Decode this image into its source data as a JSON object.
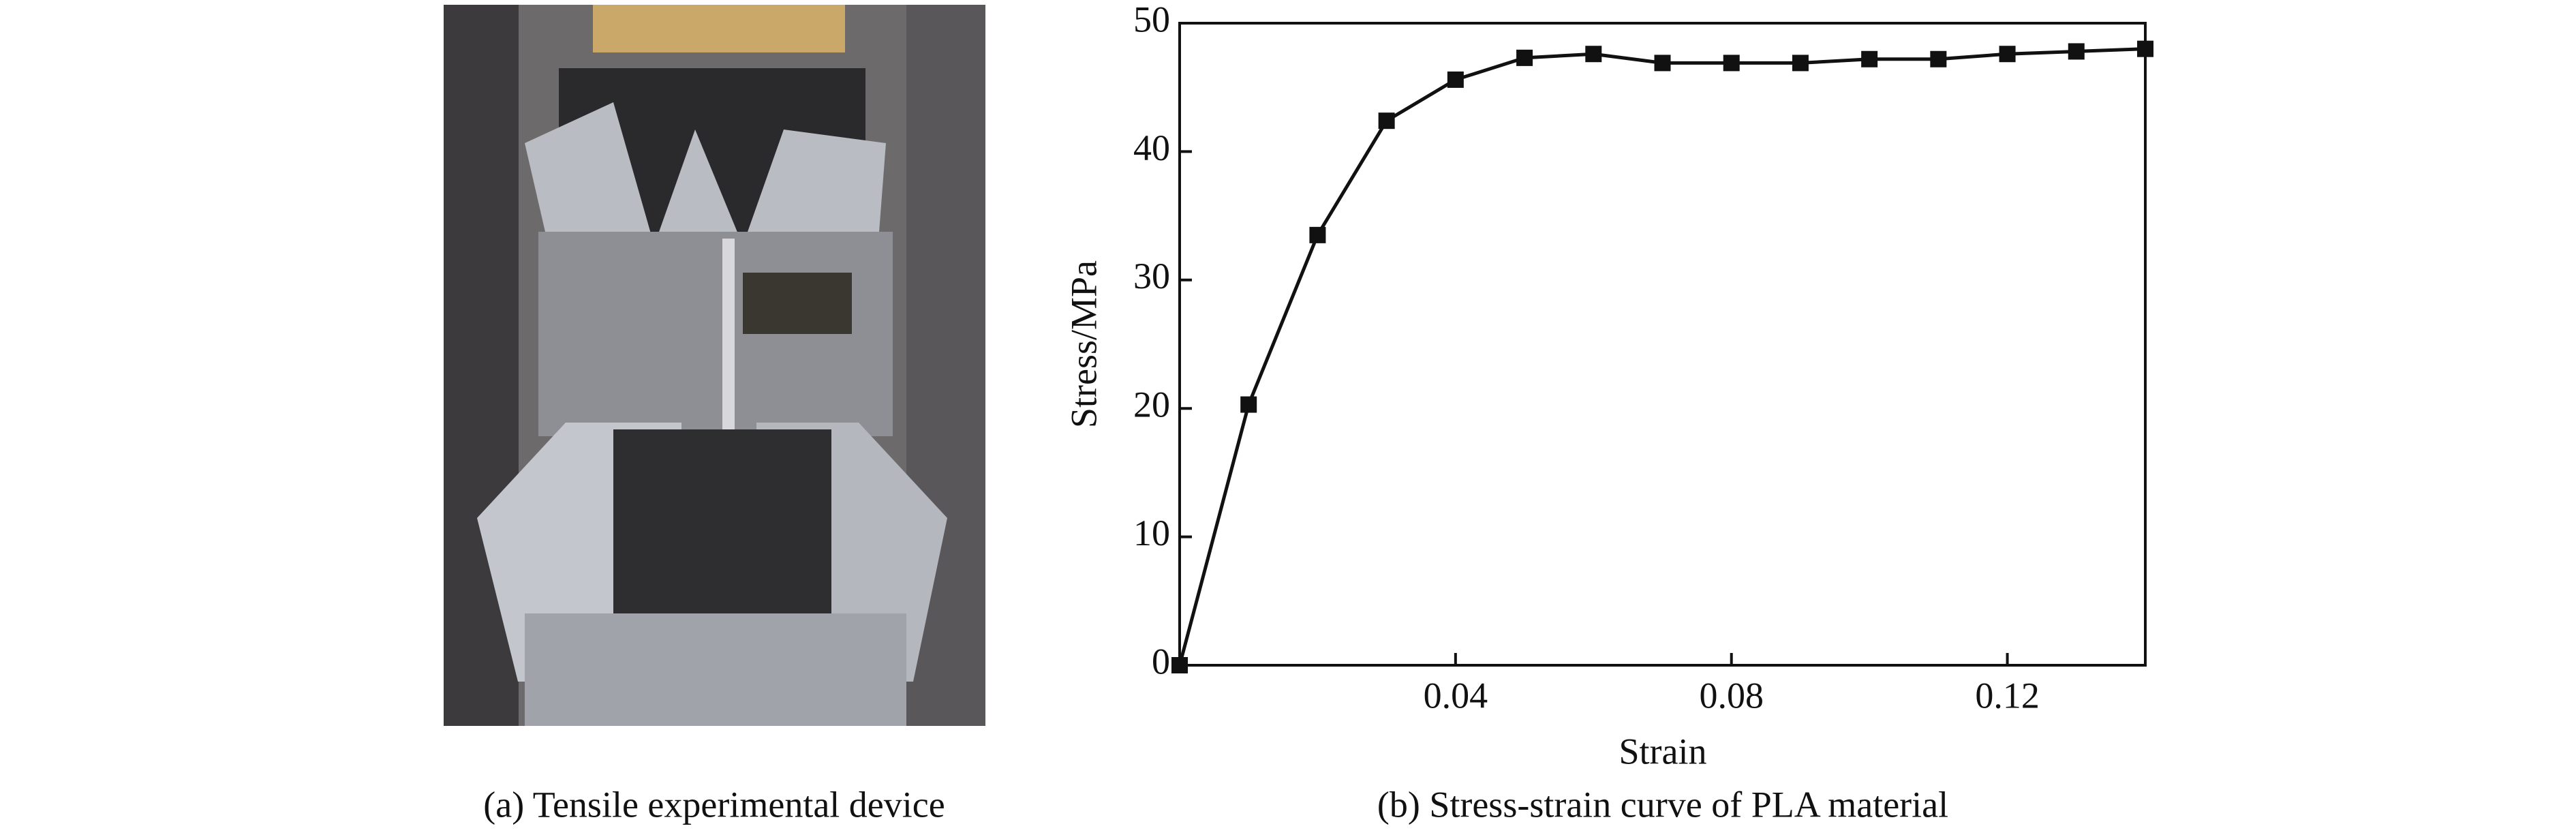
{
  "chart_data": {
    "type": "line",
    "x_label": "Strain",
    "y_label": "Stress/MPa",
    "caption": "(b) Stress-strain curve of PLA material",
    "x": [
      0,
      0.01,
      0.02,
      0.03,
      0.04,
      0.05,
      0.06,
      0.07,
      0.08,
      0.09,
      0.1,
      0.11,
      0.12,
      0.13,
      0.14
    ],
    "values": [
      0,
      20.3,
      33.5,
      42.4,
      45.6,
      47.3,
      47.6,
      46.9,
      46.9,
      46.9,
      47.2,
      47.2,
      47.6,
      47.8,
      48.0
    ],
    "color": "#111111",
    "xlim": [
      0,
      0.14
    ],
    "xticks": [
      0.04,
      0.08,
      0.12
    ],
    "ylim": [
      0,
      50
    ],
    "yticks": [
      0,
      10,
      20,
      30,
      40,
      50
    ]
  },
  "photo": {
    "caption": "(a) Tensile experimental device"
  }
}
